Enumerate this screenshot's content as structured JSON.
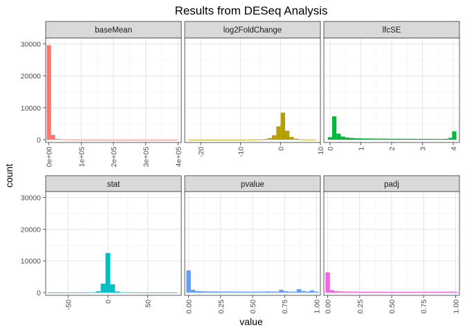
{
  "chart_data": {
    "type": "bar",
    "title": "Results from DESeq Analysis",
    "xlabel": "value",
    "ylabel": "count",
    "ylim": [
      0,
      31000
    ],
    "y_ticks": [
      0,
      10000,
      20000,
      30000
    ],
    "y_tick_labels": [
      "0",
      "10000",
      "20000",
      "30000"
    ],
    "grid": true,
    "legend": "none",
    "facets": [
      {
        "name": "baseMean",
        "color": "#F8766D",
        "xlim": [
          -10000,
          410000
        ],
        "x_ticks": [
          0,
          100000,
          200000,
          300000,
          400000
        ],
        "x_tick_labels": [
          "0e+00",
          "1e+05",
          "2e+05",
          "3e+05",
          "4e+05"
        ],
        "bins": [
          {
            "x": 0,
            "y": 29600
          },
          {
            "x": 13000,
            "y": 1500
          },
          {
            "x": 26000,
            "y": 250
          },
          {
            "x": 39000,
            "y": 120
          },
          {
            "x": 52000,
            "y": 80
          },
          {
            "x": 65000,
            "y": 60
          },
          {
            "x": 78000,
            "y": 50
          },
          {
            "x": 91000,
            "y": 40
          },
          {
            "x": 104000,
            "y": 35
          },
          {
            "x": 117000,
            "y": 30
          },
          {
            "x": 130000,
            "y": 30
          },
          {
            "x": 143000,
            "y": 25
          },
          {
            "x": 156000,
            "y": 25
          },
          {
            "x": 169000,
            "y": 20
          },
          {
            "x": 182000,
            "y": 20
          },
          {
            "x": 195000,
            "y": 20
          },
          {
            "x": 208000,
            "y": 15
          },
          {
            "x": 221000,
            "y": 15
          },
          {
            "x": 234000,
            "y": 15
          },
          {
            "x": 247000,
            "y": 15
          },
          {
            "x": 260000,
            "y": 10
          },
          {
            "x": 273000,
            "y": 10
          },
          {
            "x": 286000,
            "y": 10
          },
          {
            "x": 299000,
            "y": 10
          },
          {
            "x": 312000,
            "y": 10
          },
          {
            "x": 325000,
            "y": 8
          },
          {
            "x": 338000,
            "y": 8
          },
          {
            "x": 351000,
            "y": 6
          },
          {
            "x": 364000,
            "y": 5
          },
          {
            "x": 377000,
            "y": 5
          },
          {
            "x": 390000,
            "y": 4
          }
        ]
      },
      {
        "name": "log2FoldChange",
        "color": "#B79F00",
        "xlim": [
          -24,
          10
        ],
        "x_ticks": [
          -20,
          -10,
          0,
          10
        ],
        "x_tick_labels": [
          "-20",
          "-10",
          "0",
          "10"
        ],
        "bins": [
          {
            "x": -22.5,
            "y": 10
          },
          {
            "x": -21.4,
            "y": 10
          },
          {
            "x": -20.3,
            "y": 10
          },
          {
            "x": -19.2,
            "y": 10
          },
          {
            "x": -18.1,
            "y": 10
          },
          {
            "x": -17.0,
            "y": 10
          },
          {
            "x": -15.9,
            "y": 10
          },
          {
            "x": -14.8,
            "y": 10
          },
          {
            "x": -13.7,
            "y": 12
          },
          {
            "x": -12.6,
            "y": 12
          },
          {
            "x": -11.5,
            "y": 15
          },
          {
            "x": -10.4,
            "y": 15
          },
          {
            "x": -9.3,
            "y": 20
          },
          {
            "x": -8.2,
            "y": 25
          },
          {
            "x": -7.1,
            "y": 35
          },
          {
            "x": -6.0,
            "y": 50
          },
          {
            "x": -4.9,
            "y": 80
          },
          {
            "x": -3.8,
            "y": 200
          },
          {
            "x": -2.7,
            "y": 500
          },
          {
            "x": -1.6,
            "y": 1400
          },
          {
            "x": -0.5,
            "y": 4200
          },
          {
            "x": 0.6,
            "y": 8500
          },
          {
            "x": 1.7,
            "y": 2800
          },
          {
            "x": 2.8,
            "y": 900
          },
          {
            "x": 3.9,
            "y": 300
          },
          {
            "x": 5.0,
            "y": 120
          },
          {
            "x": 6.1,
            "y": 50
          },
          {
            "x": 7.2,
            "y": 25
          },
          {
            "x": 8.3,
            "y": 15
          }
        ]
      },
      {
        "name": "lfcSE",
        "color": "#00BA38",
        "xlim": [
          -0.2,
          4.2
        ],
        "x_ticks": [
          0,
          1,
          2,
          3,
          4
        ],
        "x_tick_labels": [
          "0",
          "1",
          "2",
          "3",
          "4"
        ],
        "bins": [
          {
            "x": 0.0,
            "y": 800
          },
          {
            "x": 0.14,
            "y": 7300
          },
          {
            "x": 0.28,
            "y": 1900
          },
          {
            "x": 0.42,
            "y": 1000
          },
          {
            "x": 0.56,
            "y": 700
          },
          {
            "x": 0.7,
            "y": 560
          },
          {
            "x": 0.84,
            "y": 480
          },
          {
            "x": 0.98,
            "y": 430
          },
          {
            "x": 1.12,
            "y": 400
          },
          {
            "x": 1.26,
            "y": 380
          },
          {
            "x": 1.4,
            "y": 360
          },
          {
            "x": 1.54,
            "y": 340
          },
          {
            "x": 1.68,
            "y": 330
          },
          {
            "x": 1.82,
            "y": 320
          },
          {
            "x": 1.96,
            "y": 310
          },
          {
            "x": 2.1,
            "y": 300
          },
          {
            "x": 2.24,
            "y": 300
          },
          {
            "x": 2.38,
            "y": 290
          },
          {
            "x": 2.52,
            "y": 280
          },
          {
            "x": 2.66,
            "y": 280
          },
          {
            "x": 2.8,
            "y": 270
          },
          {
            "x": 2.94,
            "y": 270
          },
          {
            "x": 3.08,
            "y": 260
          },
          {
            "x": 3.22,
            "y": 260
          },
          {
            "x": 3.36,
            "y": 250
          },
          {
            "x": 3.5,
            "y": 250
          },
          {
            "x": 3.64,
            "y": 240
          },
          {
            "x": 3.78,
            "y": 300
          },
          {
            "x": 3.92,
            "y": 600
          },
          {
            "x": 4.03,
            "y": 2600
          }
        ]
      },
      {
        "name": "stat",
        "color": "#00BFC4",
        "xlim": [
          -78,
          92
        ],
        "x_ticks": [
          -50,
          0,
          50
        ],
        "x_tick_labels": [
          "-50",
          "0",
          "50"
        ],
        "bins": [
          {
            "x": -72,
            "y": 20
          },
          {
            "x": -66,
            "y": 20
          },
          {
            "x": -60,
            "y": 20
          },
          {
            "x": -54,
            "y": 20
          },
          {
            "x": -48,
            "y": 25
          },
          {
            "x": -42,
            "y": 25
          },
          {
            "x": -36,
            "y": 30
          },
          {
            "x": -30,
            "y": 40
          },
          {
            "x": -24,
            "y": 60
          },
          {
            "x": -18,
            "y": 120
          },
          {
            "x": -12,
            "y": 400
          },
          {
            "x": -6,
            "y": 2800
          },
          {
            "x": 0,
            "y": 12500
          },
          {
            "x": 6,
            "y": 2600
          },
          {
            "x": 12,
            "y": 350
          },
          {
            "x": 18,
            "y": 110
          },
          {
            "x": 24,
            "y": 50
          },
          {
            "x": 30,
            "y": 35
          },
          {
            "x": 36,
            "y": 25
          },
          {
            "x": 42,
            "y": 20
          },
          {
            "x": 48,
            "y": 20
          },
          {
            "x": 54,
            "y": 15
          },
          {
            "x": 60,
            "y": 15
          },
          {
            "x": 66,
            "y": 15
          },
          {
            "x": 72,
            "y": 15
          },
          {
            "x": 78,
            "y": 15
          },
          {
            "x": 84,
            "y": 15
          }
        ]
      },
      {
        "name": "pvalue",
        "color": "#619CFF",
        "xlim": [
          -0.03,
          1.03
        ],
        "x_ticks": [
          0,
          0.25,
          0.5,
          0.75,
          1
        ],
        "x_tick_labels": [
          "0.00",
          "0.25",
          "0.50",
          "0.75",
          "1.00"
        ],
        "bins": [
          {
            "x": 0.0,
            "y": 7000
          },
          {
            "x": 0.0345,
            "y": 900
          },
          {
            "x": 0.069,
            "y": 500
          },
          {
            "x": 0.1035,
            "y": 420
          },
          {
            "x": 0.138,
            "y": 380
          },
          {
            "x": 0.1725,
            "y": 360
          },
          {
            "x": 0.207,
            "y": 340
          },
          {
            "x": 0.2415,
            "y": 330
          },
          {
            "x": 0.276,
            "y": 320
          },
          {
            "x": 0.3105,
            "y": 310
          },
          {
            "x": 0.345,
            "y": 310
          },
          {
            "x": 0.3795,
            "y": 300
          },
          {
            "x": 0.414,
            "y": 300
          },
          {
            "x": 0.4485,
            "y": 300
          },
          {
            "x": 0.483,
            "y": 300
          },
          {
            "x": 0.5175,
            "y": 300
          },
          {
            "x": 0.552,
            "y": 300
          },
          {
            "x": 0.5865,
            "y": 320
          },
          {
            "x": 0.621,
            "y": 380
          },
          {
            "x": 0.6555,
            "y": 300
          },
          {
            "x": 0.69,
            "y": 300
          },
          {
            "x": 0.7245,
            "y": 900
          },
          {
            "x": 0.759,
            "y": 420
          },
          {
            "x": 0.7935,
            "y": 320
          },
          {
            "x": 0.828,
            "y": 300
          },
          {
            "x": 0.8625,
            "y": 1100
          },
          {
            "x": 0.897,
            "y": 500
          },
          {
            "x": 0.9315,
            "y": 320
          },
          {
            "x": 0.966,
            "y": 700
          },
          {
            "x": 1.0,
            "y": 300
          }
        ]
      },
      {
        "name": "padj",
        "color": "#F564E3",
        "xlim": [
          -0.03,
          1.03
        ],
        "x_ticks": [
          0,
          0.25,
          0.5,
          0.75,
          1
        ],
        "x_tick_labels": [
          "0.00",
          "0.25",
          "0.50",
          "0.75",
          "1.00"
        ],
        "bins": [
          {
            "x": 0.0,
            "y": 6400
          },
          {
            "x": 0.0345,
            "y": 800
          },
          {
            "x": 0.069,
            "y": 450
          },
          {
            "x": 0.1035,
            "y": 380
          },
          {
            "x": 0.138,
            "y": 340
          },
          {
            "x": 0.1725,
            "y": 320
          },
          {
            "x": 0.207,
            "y": 300
          },
          {
            "x": 0.2415,
            "y": 290
          },
          {
            "x": 0.276,
            "y": 280
          },
          {
            "x": 0.3105,
            "y": 280
          },
          {
            "x": 0.345,
            "y": 270
          },
          {
            "x": 0.3795,
            "y": 270
          },
          {
            "x": 0.414,
            "y": 260
          },
          {
            "x": 0.4485,
            "y": 260
          },
          {
            "x": 0.483,
            "y": 260
          },
          {
            "x": 0.5175,
            "y": 260
          },
          {
            "x": 0.552,
            "y": 260
          },
          {
            "x": 0.5865,
            "y": 260
          },
          {
            "x": 0.621,
            "y": 260
          },
          {
            "x": 0.6555,
            "y": 260
          },
          {
            "x": 0.69,
            "y": 260
          },
          {
            "x": 0.7245,
            "y": 270
          },
          {
            "x": 0.759,
            "y": 270
          },
          {
            "x": 0.7935,
            "y": 270
          },
          {
            "x": 0.828,
            "y": 270
          },
          {
            "x": 0.8625,
            "y": 280
          },
          {
            "x": 0.897,
            "y": 280
          },
          {
            "x": 0.9315,
            "y": 290
          },
          {
            "x": 0.966,
            "y": 300
          },
          {
            "x": 1.0,
            "y": 250
          }
        ]
      }
    ]
  }
}
